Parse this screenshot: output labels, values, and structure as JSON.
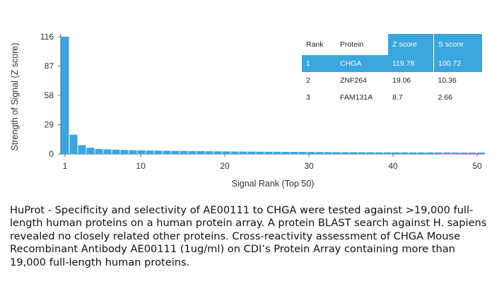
{
  "chart_data": {
    "type": "bar",
    "ylabel": "Strength of Signal (Z score)",
    "xlabel": "Signal Rank (Top 50)",
    "yticks": [
      0,
      29,
      58,
      87,
      116
    ],
    "xticks": [
      1,
      10,
      20,
      30,
      40,
      50
    ],
    "ylim": [
      0,
      116
    ],
    "xlim": [
      1,
      50
    ],
    "color": "#3aa6dd",
    "x": [
      1,
      2,
      3,
      4,
      5,
      6,
      7,
      8,
      9,
      10,
      11,
      12,
      13,
      14,
      15,
      16,
      17,
      18,
      19,
      20,
      21,
      22,
      23,
      24,
      25,
      26,
      27,
      28,
      29,
      30,
      31,
      32,
      33,
      34,
      35,
      36,
      37,
      38,
      39,
      40,
      41,
      42,
      43,
      44,
      45,
      46,
      47,
      48,
      49,
      50
    ],
    "values": [
      119.78,
      19.06,
      8.7,
      6.2,
      5.0,
      4.6,
      4.3,
      4.0,
      3.8,
      3.6,
      3.4,
      3.3,
      3.2,
      3.1,
      3.0,
      2.9,
      2.8,
      2.7,
      2.6,
      2.5,
      2.45,
      2.4,
      2.35,
      2.3,
      2.25,
      2.2,
      2.15,
      2.1,
      2.05,
      2.0,
      1.95,
      1.9,
      1.85,
      1.8,
      1.78,
      1.75,
      1.72,
      1.7,
      1.68,
      1.65,
      1.62,
      1.6,
      1.58,
      1.55,
      1.52,
      1.5,
      1.48,
      1.45,
      1.42,
      1.4
    ]
  },
  "table": {
    "headers": [
      "Rank",
      "Protein",
      "Z score",
      "S score"
    ],
    "highlight_color": "#3aa6dd",
    "rows": [
      {
        "rank": "1",
        "protein": "CHGA",
        "z": "119.78",
        "s": "100.72"
      },
      {
        "rank": "2",
        "protein": "ZNF264",
        "z": "19.06",
        "s": "10.36"
      },
      {
        "rank": "3",
        "protein": "FAM131A",
        "z": "8.7",
        "s": "2.66"
      }
    ]
  },
  "caption": "HuProt  -  Specificity and selectivity of AE00111 to CHGA were tested against >19,000 full-length human proteins on a human protein array. A protein BLAST search against H. sapiens revealed no closely related other proteins. Cross-reactivity assessment of CHGA Mouse Recombinant Antibody AE00111 (1ug/ml) on CDI’s Protein Array containing more than 19,000 full-length human proteins."
}
